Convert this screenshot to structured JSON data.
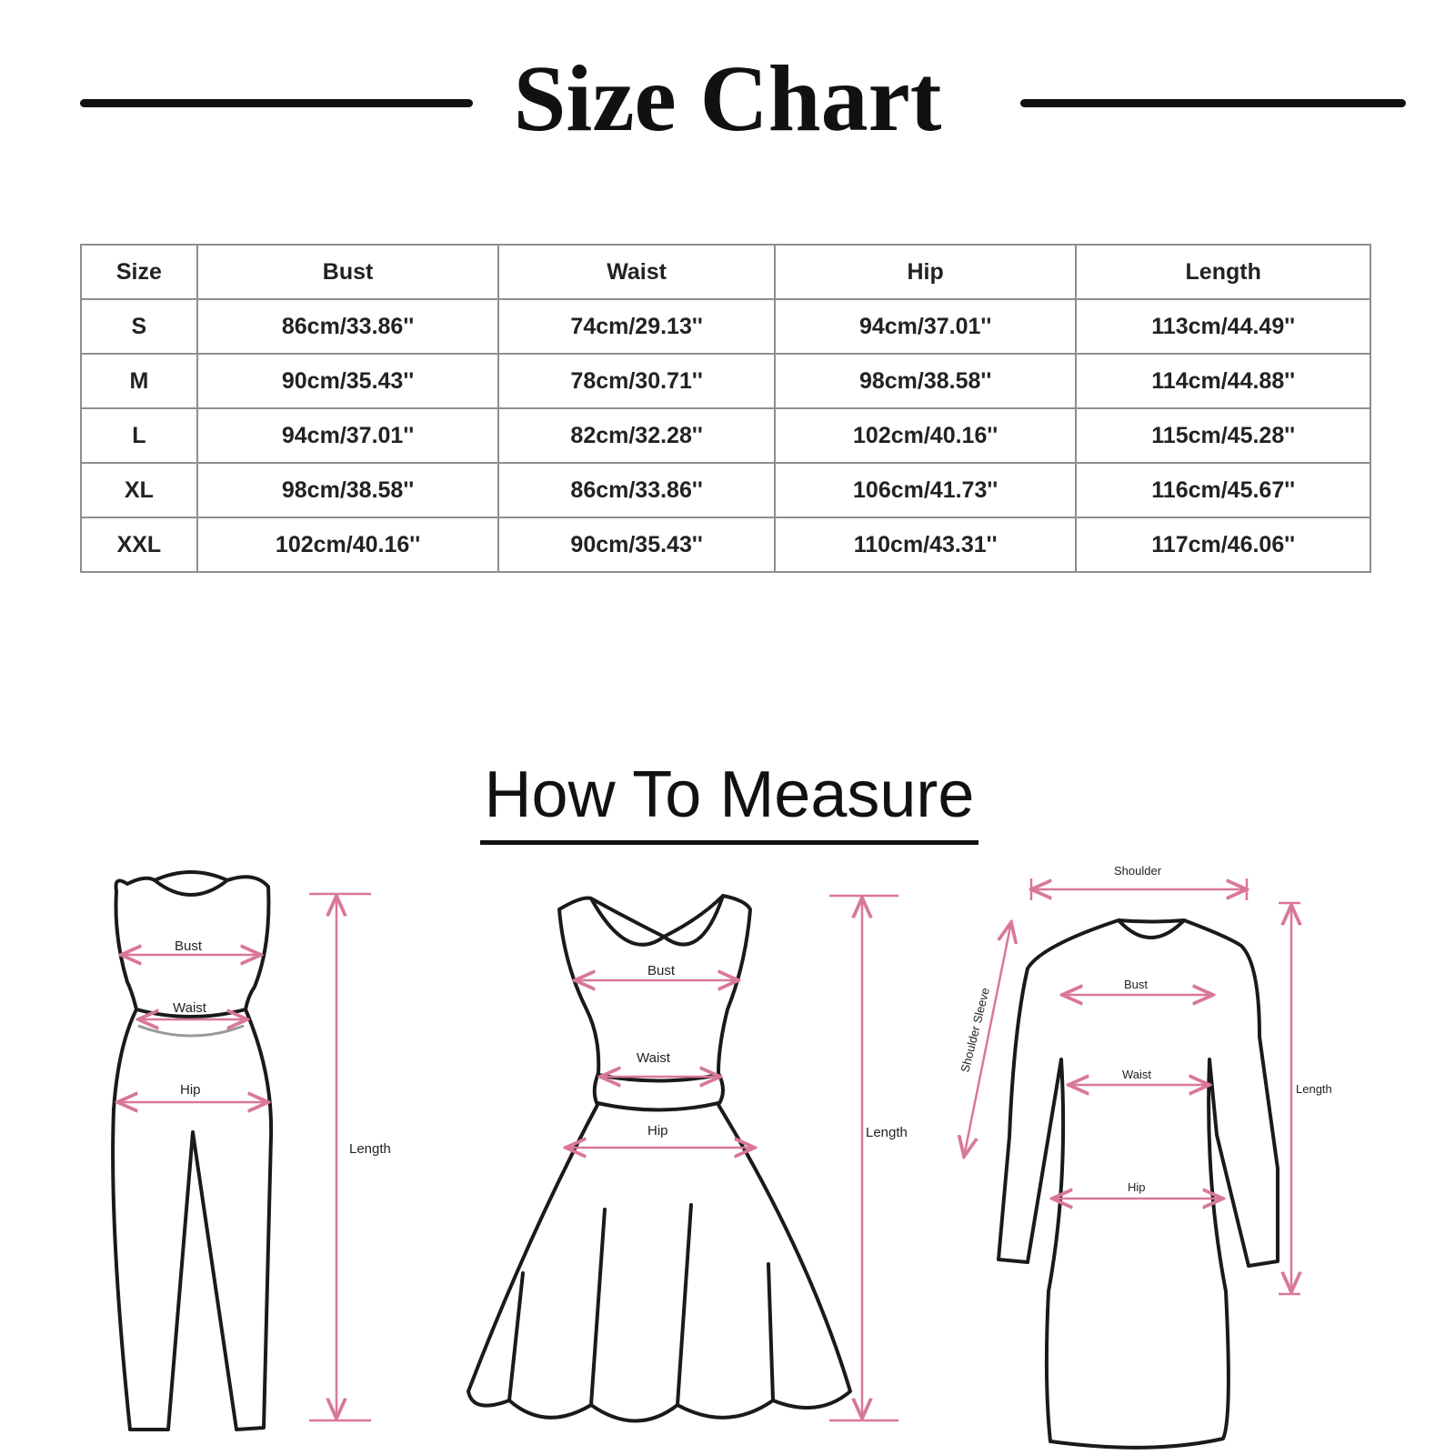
{
  "title": "Size Chart",
  "table": {
    "headers": [
      "Size",
      "Bust",
      "Waist",
      "Hip",
      "Length"
    ],
    "rows": [
      [
        "S",
        "86cm/33.86''",
        "74cm/29.13''",
        "94cm/37.01''",
        "113cm/44.49''"
      ],
      [
        "M",
        "90cm/35.43''",
        "78cm/30.71''",
        "98cm/38.58''",
        "114cm/44.88''"
      ],
      [
        "L",
        "94cm/37.01''",
        "82cm/32.28''",
        "102cm/40.16''",
        "115cm/45.28''"
      ],
      [
        "XL",
        "98cm/38.58''",
        "86cm/33.86''",
        "106cm/41.73''",
        "116cm/45.67''"
      ],
      [
        "XXL",
        "102cm/40.16''",
        "90cm/35.43''",
        "110cm/43.31''",
        "117cm/46.06''"
      ]
    ]
  },
  "how_to_measure": {
    "title": "How To Measure",
    "jumpsuit": {
      "bust": "Bust",
      "waist": "Waist",
      "hip": "Hip",
      "length": "Length"
    },
    "dress": {
      "bust": "Bust",
      "waist": "Waist",
      "hip": "Hip",
      "length": "Length"
    },
    "longsleeve": {
      "shoulder": "Shoulder",
      "sleeve": "Shoulder Sleeve",
      "bust": "Bust",
      "waist": "Waist",
      "hip": "Hip",
      "length": "Length"
    }
  },
  "colors": {
    "measure_line": "#d9779a",
    "outline": "#1a1a1a"
  }
}
